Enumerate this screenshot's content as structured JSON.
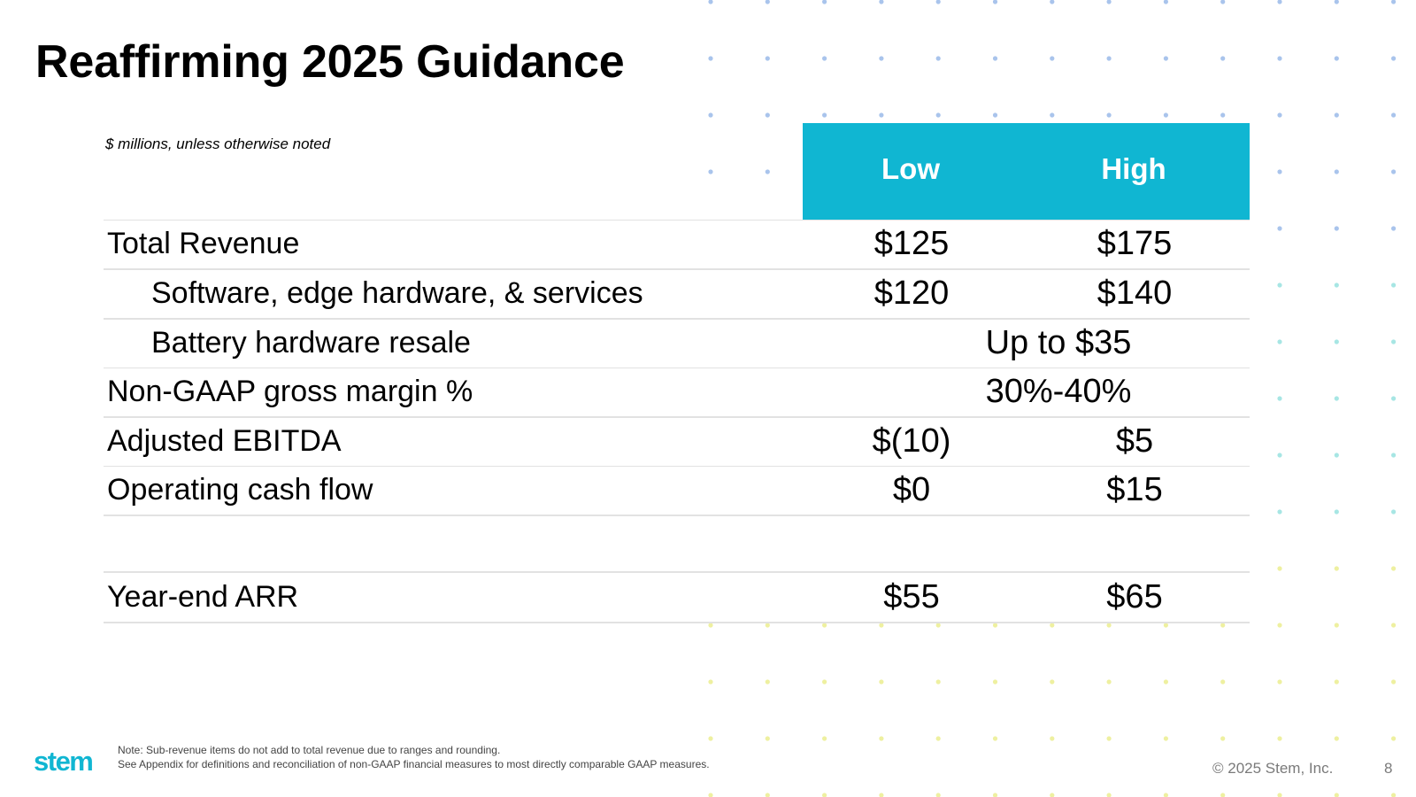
{
  "title": "Reaffirming 2025 Guidance",
  "units_note": "$ millions, unless otherwise noted",
  "columns": {
    "low": "Low",
    "high": "High"
  },
  "rows": [
    {
      "label": "Total Revenue",
      "low": "$125",
      "high": "$175"
    },
    {
      "label": "Software, edge hardware, & services",
      "low": "$120",
      "high": "$140"
    },
    {
      "label": "Battery hardware resale",
      "range": "Up to $35"
    },
    {
      "label": "Non-GAAP gross margin %",
      "range": "30%-40%"
    },
    {
      "label": "Adjusted EBITDA",
      "low": "$(10)",
      "high": "$5"
    },
    {
      "label": "Operating cash flow",
      "low": "$0",
      "high": "$15"
    },
    {
      "label": "Year-end ARR",
      "low": "$55",
      "high": "$65"
    }
  ],
  "footer": {
    "logo": "stem",
    "note_line1": "Note: Sub-revenue items do not add to total revenue due to ranges and rounding.",
    "note_line2": "See Appendix for definitions and reconciliation of non-GAAP financial measures to most directly comparable GAAP measures.",
    "copyright": "© 2025 Stem, Inc.",
    "page_number": "8"
  },
  "colors": {
    "accent": "#10b6d2",
    "dot_blue": "#a9c4ec",
    "dot_teal": "#a7e6e4",
    "dot_yellow": "#eef0a0"
  }
}
